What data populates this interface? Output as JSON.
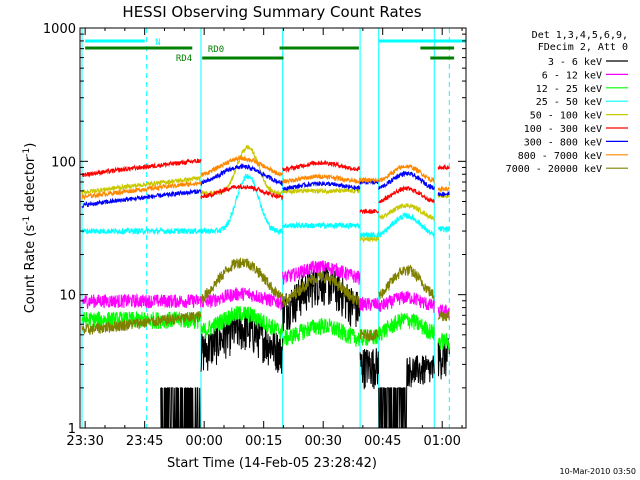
{
  "chart_data": {
    "type": "line",
    "title": "HESSI Observing Summary Count Rates",
    "xlabel": "Start Time (14-Feb-05 23:28:42)",
    "ylabel_main": "Count Rate (s",
    "ylabel_sup1": "-1",
    "ylabel_mid": " detector",
    "ylabel_sup2": "-1",
    "ylabel_end": ")",
    "y_scale": "log",
    "ylim": [
      1,
      1000
    ],
    "xlim_minutes_after_23_30": [
      -1.3,
      96
    ],
    "x_ticks": [
      {
        "m": 0,
        "label": "23:30"
      },
      {
        "m": 15,
        "label": "23:45"
      },
      {
        "m": 30,
        "label": "00:00"
      },
      {
        "m": 45,
        "label": "00:15"
      },
      {
        "m": 60,
        "label": "00:30"
      },
      {
        "m": 75,
        "label": "00:45"
      },
      {
        "m": 90,
        "label": "01:00"
      }
    ],
    "y_ticks": [
      {
        "v": 1,
        "label": "1"
      },
      {
        "v": 10,
        "label": "10"
      },
      {
        "v": 100,
        "label": "100"
      },
      {
        "v": 1000,
        "label": "1000"
      }
    ],
    "legend_header": [
      "Det 1,3,4,5,6,9,",
      "FDecim 2, Att 0"
    ],
    "legend_placement": "right",
    "series": [
      {
        "name": "3 - 6 keV",
        "color": "#000000"
      },
      {
        "name": "6 - 12 keV",
        "color": "#ff00ff"
      },
      {
        "name": "12 - 25 keV",
        "color": "#00ff00"
      },
      {
        "name": "25 - 50 keV",
        "color": "#00ffff"
      },
      {
        "name": "50 - 100 keV",
        "color": "#c8c800"
      },
      {
        "name": "100 - 300 keV",
        "color": "#ff0000"
      },
      {
        "name": "300 - 800 keV",
        "color": "#0000ff"
      },
      {
        "name": "800 - 7000 keV",
        "color": "#ff8800"
      },
      {
        "name": "7000 - 20000 keV",
        "color": "#808000"
      }
    ],
    "flags": [
      {
        "label": "N",
        "color": "#00ffff",
        "segments": [
          [
            0,
            15
          ],
          [
            74,
            96
          ]
        ]
      },
      {
        "label": "RD0",
        "color": "#008000",
        "segments": [
          [
            0,
            27
          ],
          [
            49,
            69
          ],
          [
            84.5,
            93
          ]
        ]
      },
      {
        "label": "RD4",
        "color": "#008000",
        "segments": [
          [
            29.5,
            50
          ],
          [
            87,
            93
          ]
        ]
      }
    ],
    "vertical_markers": [
      {
        "m": -0.8,
        "style": "solid"
      },
      {
        "m": 15.5,
        "style": "dashed"
      },
      {
        "m": 29.2,
        "style": "solid"
      },
      {
        "m": 49.8,
        "style": "solid"
      },
      {
        "m": 69.3,
        "style": "solid"
      },
      {
        "m": 74.0,
        "style": "solid"
      },
      {
        "m": 88.0,
        "style": "solid"
      },
      {
        "m": 91.8,
        "style": "dashed"
      }
    ],
    "timestamp": "10-Mar-2010 03:50"
  }
}
